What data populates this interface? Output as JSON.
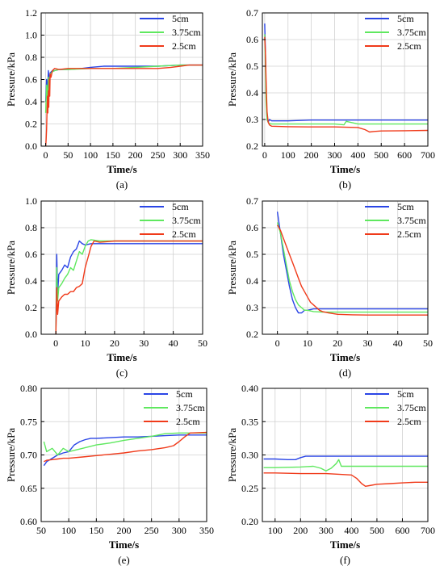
{
  "figure": {
    "series_colors": {
      "5cm": "#2a45e6",
      "3.75cm": "#5fe85f",
      "2.5cm": "#f03a1a"
    }
  },
  "chart_data": [
    {
      "panel_label": "(a)",
      "type": "line",
      "xlabel": "Time/s",
      "ylabel": "Pressure/kPa",
      "xlim": [
        -10,
        350
      ],
      "ylim": [
        0.0,
        1.2
      ],
      "xticks": [
        0,
        50,
        100,
        150,
        200,
        250,
        300,
        350
      ],
      "yticks": [
        0.0,
        0.2,
        0.4,
        0.6,
        0.8,
        1.0,
        1.2
      ],
      "xtick_labels": [
        "0",
        "50",
        "100",
        "150",
        "200",
        "250",
        "300",
        "350"
      ],
      "ytick_labels": [
        "0.0",
        "0.2",
        "0.4",
        "0.6",
        "0.8",
        "1.0",
        "1.2"
      ],
      "grid": true,
      "legend": "top-right",
      "series": [
        {
          "name": "5cm",
          "x": [
            0,
            2,
            4,
            6,
            8,
            10,
            15,
            20,
            30,
            50,
            80,
            100,
            130,
            150,
            200,
            250,
            300,
            320,
            350
          ],
          "y": [
            0.4,
            0.6,
            0.5,
            0.68,
            0.58,
            0.66,
            0.68,
            0.68,
            0.69,
            0.69,
            0.7,
            0.71,
            0.72,
            0.72,
            0.72,
            0.72,
            0.73,
            0.73,
            0.73
          ]
        },
        {
          "name": "3.75cm",
          "x": [
            0,
            2,
            4,
            6,
            8,
            10,
            15,
            20,
            30,
            50,
            100,
            150,
            200,
            250,
            300,
            320,
            350
          ],
          "y": [
            0.3,
            0.55,
            0.4,
            0.62,
            0.5,
            0.65,
            0.67,
            0.68,
            0.69,
            0.69,
            0.7,
            0.7,
            0.71,
            0.72,
            0.73,
            0.73,
            0.73
          ]
        },
        {
          "name": "2.5cm",
          "x": [
            0,
            1,
            2,
            3,
            4,
            5,
            6,
            7,
            8,
            9,
            10,
            12,
            15,
            20,
            30,
            50,
            100,
            150,
            200,
            250,
            280,
            300,
            320,
            350
          ],
          "y": [
            0.0,
            0.05,
            0.15,
            0.3,
            0.45,
            0.3,
            0.5,
            0.35,
            0.6,
            0.45,
            0.65,
            0.62,
            0.68,
            0.7,
            0.69,
            0.7,
            0.7,
            0.7,
            0.7,
            0.7,
            0.71,
            0.72,
            0.73,
            0.73
          ]
        }
      ]
    },
    {
      "panel_label": "(b)",
      "type": "line",
      "xlabel": "Time/s",
      "ylabel": "Pressure/kPa",
      "xlim": [
        -10,
        700
      ],
      "ylim": [
        0.2,
        0.7
      ],
      "xticks": [
        0,
        100,
        200,
        300,
        400,
        500,
        600,
        700
      ],
      "yticks": [
        0.2,
        0.3,
        0.4,
        0.5,
        0.6,
        0.7
      ],
      "xtick_labels": [
        "0",
        "100",
        "200",
        "300",
        "400",
        "500",
        "600",
        "700"
      ],
      "ytick_labels": [
        "0.2",
        "0.3",
        "0.4",
        "0.5",
        "0.6",
        "0.7"
      ],
      "grid": true,
      "legend": "top-right",
      "series": [
        {
          "name": "5cm",
          "x": [
            0,
            3,
            6,
            10,
            15,
            20,
            30,
            100,
            200,
            300,
            400,
            500,
            600,
            700
          ],
          "y": [
            0.66,
            0.55,
            0.4,
            0.3,
            0.29,
            0.3,
            0.295,
            0.295,
            0.298,
            0.298,
            0.298,
            0.298,
            0.298,
            0.298
          ]
        },
        {
          "name": "3.75cm",
          "x": [
            0,
            3,
            6,
            10,
            15,
            20,
            30,
            100,
            200,
            300,
            340,
            350,
            400,
            500,
            600,
            700
          ],
          "y": [
            0.62,
            0.5,
            0.37,
            0.3,
            0.29,
            0.285,
            0.283,
            0.283,
            0.283,
            0.283,
            0.28,
            0.293,
            0.283,
            0.283,
            0.283,
            0.283
          ]
        },
        {
          "name": "2.5cm",
          "x": [
            0,
            3,
            6,
            10,
            15,
            20,
            30,
            100,
            200,
            300,
            400,
            430,
            450,
            470,
            500,
            600,
            700
          ],
          "y": [
            0.61,
            0.55,
            0.45,
            0.33,
            0.29,
            0.28,
            0.275,
            0.273,
            0.272,
            0.272,
            0.27,
            0.262,
            0.253,
            0.255,
            0.257,
            0.258,
            0.259
          ]
        }
      ]
    },
    {
      "panel_label": "(c)",
      "type": "line",
      "xlabel": "Time/s",
      "ylabel": "Pressure/kPa",
      "xlim": [
        -5,
        50
      ],
      "ylim": [
        0.0,
        1.0
      ],
      "xticks": [
        0,
        10,
        20,
        30,
        40,
        50
      ],
      "yticks": [
        0.0,
        0.2,
        0.4,
        0.6,
        0.8,
        1.0
      ],
      "xtick_labels": [
        "0",
        "10",
        "20",
        "30",
        "40",
        "50"
      ],
      "ytick_labels": [
        "0.0",
        "0.2",
        "0.4",
        "0.6",
        "0.8",
        "1.0"
      ],
      "grid": true,
      "legend": "top-right",
      "series": [
        {
          "name": "5cm",
          "x": [
            0,
            0.3,
            0.6,
            1,
            2,
            3,
            4,
            5,
            6,
            7,
            8,
            9,
            10,
            12,
            15,
            20,
            30,
            40,
            50
          ],
          "y": [
            0.0,
            0.6,
            0.3,
            0.45,
            0.48,
            0.52,
            0.5,
            0.58,
            0.62,
            0.64,
            0.7,
            0.68,
            0.67,
            0.68,
            0.68,
            0.68,
            0.68,
            0.68,
            0.68
          ]
        },
        {
          "name": "3.75cm",
          "x": [
            0,
            0.3,
            0.6,
            1,
            2,
            3,
            4,
            5,
            6,
            7,
            8,
            9,
            10,
            11,
            12,
            15,
            20,
            30,
            40,
            50
          ],
          "y": [
            0.0,
            0.5,
            0.25,
            0.35,
            0.38,
            0.42,
            0.45,
            0.5,
            0.48,
            0.55,
            0.62,
            0.6,
            0.66,
            0.7,
            0.71,
            0.7,
            0.7,
            0.7,
            0.7,
            0.7
          ]
        },
        {
          "name": "2.5cm",
          "x": [
            0,
            0.3,
            0.6,
            1,
            2,
            3,
            4,
            5,
            6,
            7,
            8,
            9,
            10,
            11,
            12,
            13,
            15,
            20,
            30,
            40,
            50
          ],
          "y": [
            0.0,
            0.35,
            0.15,
            0.25,
            0.28,
            0.3,
            0.3,
            0.32,
            0.32,
            0.35,
            0.36,
            0.38,
            0.5,
            0.58,
            0.66,
            0.7,
            0.69,
            0.7,
            0.7,
            0.7,
            0.7
          ]
        }
      ]
    },
    {
      "panel_label": "(d)",
      "type": "line",
      "xlabel": "Time/s",
      "ylabel": "Pressure/kPa",
      "xlim": [
        -5,
        50
      ],
      "ylim": [
        0.2,
        0.7
      ],
      "xticks": [
        0,
        10,
        20,
        30,
        40,
        50
      ],
      "yticks": [
        0.2,
        0.3,
        0.4,
        0.5,
        0.6,
        0.7
      ],
      "xtick_labels": [
        "0",
        "10",
        "20",
        "30",
        "40",
        "50"
      ],
      "ytick_labels": [
        "0.2",
        "0.3",
        "0.4",
        "0.5",
        "0.6",
        "0.7"
      ],
      "grid": true,
      "legend": "top-right",
      "series": [
        {
          "name": "5cm",
          "x": [
            0,
            1,
            2,
            3,
            4,
            5,
            6,
            7,
            8,
            9,
            10,
            12,
            15,
            20,
            30,
            40,
            50
          ],
          "y": [
            0.66,
            0.58,
            0.5,
            0.44,
            0.38,
            0.33,
            0.3,
            0.28,
            0.28,
            0.29,
            0.29,
            0.295,
            0.295,
            0.295,
            0.295,
            0.295,
            0.295
          ]
        },
        {
          "name": "3.75cm",
          "x": [
            0,
            1,
            2,
            3,
            4,
            5,
            6,
            7,
            8,
            9,
            10,
            12,
            15,
            20,
            30,
            40,
            50
          ],
          "y": [
            0.62,
            0.58,
            0.52,
            0.46,
            0.4,
            0.36,
            0.33,
            0.31,
            0.3,
            0.29,
            0.29,
            0.285,
            0.283,
            0.283,
            0.283,
            0.283,
            0.283
          ]
        },
        {
          "name": "2.5cm",
          "x": [
            0,
            1,
            2,
            3,
            4,
            5,
            6,
            7,
            8,
            9,
            10,
            11,
            12,
            13,
            14,
            15,
            17,
            20,
            25,
            30,
            40,
            50
          ],
          "y": [
            0.61,
            0.59,
            0.56,
            0.53,
            0.5,
            0.47,
            0.44,
            0.41,
            0.38,
            0.36,
            0.34,
            0.32,
            0.31,
            0.3,
            0.29,
            0.285,
            0.28,
            0.275,
            0.273,
            0.272,
            0.272,
            0.272
          ]
        }
      ]
    },
    {
      "panel_label": "(e)",
      "type": "line",
      "xlabel": "Time/s",
      "ylabel": "Pressure/kPa",
      "xlim": [
        50,
        350
      ],
      "ylim": [
        0.6,
        0.8
      ],
      "xticks": [
        50,
        100,
        150,
        200,
        250,
        300,
        350
      ],
      "yticks": [
        0.6,
        0.65,
        0.7,
        0.75,
        0.8
      ],
      "xtick_labels": [
        "50",
        "100",
        "150",
        "200",
        "250",
        "300",
        "350"
      ],
      "ytick_labels": [
        "0.60",
        "0.65",
        "0.70",
        "0.75",
        "0.80"
      ],
      "grid": true,
      "legend": "top-right",
      "series": [
        {
          "name": "5cm",
          "x": [
            55,
            60,
            70,
            80,
            90,
            100,
            110,
            120,
            130,
            140,
            150,
            175,
            200,
            225,
            250,
            275,
            300,
            325,
            350
          ],
          "y": [
            0.684,
            0.69,
            0.695,
            0.7,
            0.703,
            0.705,
            0.715,
            0.72,
            0.723,
            0.725,
            0.725,
            0.726,
            0.727,
            0.727,
            0.728,
            0.729,
            0.73,
            0.73,
            0.73
          ]
        },
        {
          "name": "3.75cm",
          "x": [
            55,
            60,
            70,
            80,
            90,
            100,
            125,
            150,
            175,
            200,
            225,
            250,
            275,
            300,
            325,
            350
          ],
          "y": [
            0.72,
            0.705,
            0.71,
            0.7,
            0.71,
            0.705,
            0.71,
            0.715,
            0.718,
            0.722,
            0.725,
            0.728,
            0.732,
            0.733,
            0.733,
            0.733
          ]
        },
        {
          "name": "2.5cm",
          "x": [
            55,
            60,
            70,
            80,
            90,
            100,
            125,
            150,
            175,
            200,
            225,
            250,
            275,
            290,
            300,
            310,
            320,
            350
          ],
          "y": [
            0.69,
            0.692,
            0.693,
            0.694,
            0.695,
            0.695,
            0.697,
            0.699,
            0.701,
            0.703,
            0.706,
            0.708,
            0.711,
            0.714,
            0.72,
            0.727,
            0.733,
            0.734
          ]
        }
      ]
    },
    {
      "panel_label": "(f)",
      "type": "line",
      "xlabel": "Time/s",
      "ylabel": "Pressure/kPa",
      "xlim": [
        50,
        700
      ],
      "ylim": [
        0.2,
        0.4
      ],
      "xticks": [
        100,
        200,
        300,
        400,
        500,
        600,
        700
      ],
      "yticks": [
        0.2,
        0.25,
        0.3,
        0.35,
        0.4
      ],
      "xtick_labels": [
        "100",
        "200",
        "300",
        "400",
        "500",
        "600",
        "700"
      ],
      "ytick_labels": [
        "0.20",
        "0.25",
        "0.30",
        "0.35",
        "0.40"
      ],
      "grid": true,
      "legend": "top-right",
      "series": [
        {
          "name": "5cm",
          "x": [
            55,
            100,
            150,
            180,
            200,
            220,
            250,
            300,
            400,
            500,
            600,
            700
          ],
          "y": [
            0.294,
            0.294,
            0.293,
            0.293,
            0.296,
            0.298,
            0.298,
            0.298,
            0.298,
            0.298,
            0.298,
            0.298
          ]
        },
        {
          "name": "3.75cm",
          "x": [
            55,
            100,
            200,
            250,
            280,
            300,
            320,
            340,
            350,
            360,
            400,
            500,
            600,
            700
          ],
          "y": [
            0.281,
            0.281,
            0.282,
            0.283,
            0.28,
            0.276,
            0.28,
            0.287,
            0.293,
            0.283,
            0.283,
            0.283,
            0.283,
            0.283
          ]
        },
        {
          "name": "2.5cm",
          "x": [
            55,
            100,
            200,
            300,
            350,
            400,
            420,
            440,
            455,
            470,
            500,
            550,
            600,
            650,
            700
          ],
          "y": [
            0.273,
            0.273,
            0.272,
            0.272,
            0.271,
            0.27,
            0.265,
            0.257,
            0.253,
            0.254,
            0.256,
            0.257,
            0.258,
            0.259,
            0.259
          ]
        }
      ]
    }
  ]
}
